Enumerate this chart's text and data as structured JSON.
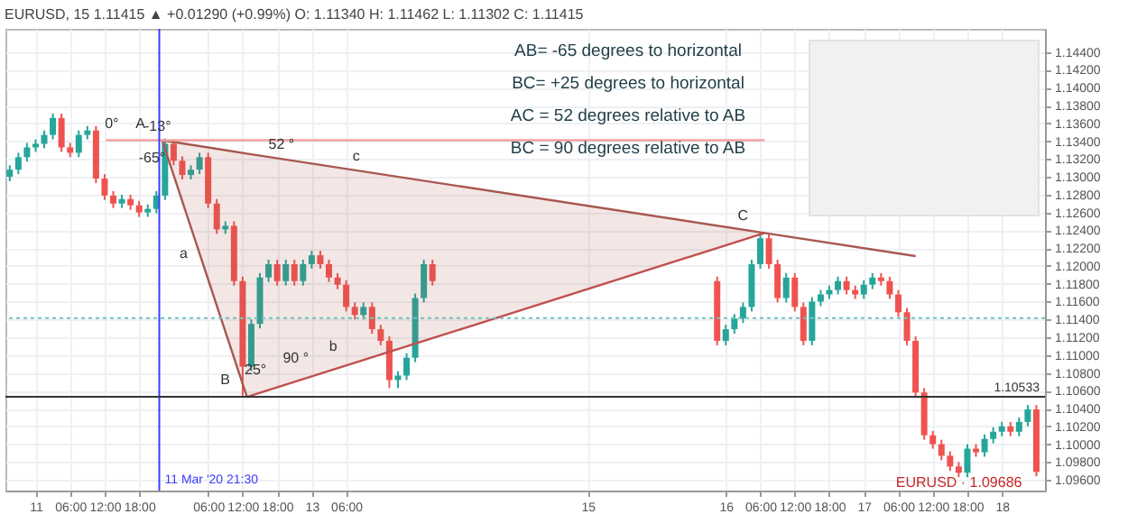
{
  "chart_data": {
    "type": "candlestick",
    "title": "EURUSD, 15  1.11415 ▲ +0.01290 (+0.99%)  O: 1.11340  H: 1.11462  L: 1.11302  C: 1.11415",
    "x": [
      "2020-03-10T19:30",
      "2020-03-10T21:00",
      "2020-03-10T22:30",
      "2020-03-11T00:00",
      "2020-03-11T01:30",
      "2020-03-11T03:00",
      "2020-03-11T04:30",
      "2020-03-11T06:00",
      "2020-03-11T07:30",
      "2020-03-11T09:00",
      "2020-03-11T10:30",
      "2020-03-11T12:00",
      "2020-03-11T13:30",
      "2020-03-11T15:00",
      "2020-03-11T16:30",
      "2020-03-11T18:00",
      "2020-03-11T19:30",
      "2020-03-11T21:00",
      "2020-03-11T22:30",
      "2020-03-12T00:00",
      "2020-03-12T01:30",
      "2020-03-12T03:00",
      "2020-03-12T04:30",
      "2020-03-12T06:00",
      "2020-03-12T07:30",
      "2020-03-12T09:00",
      "2020-03-12T10:30",
      "2020-03-12T12:00",
      "2020-03-12T13:30",
      "2020-03-12T15:00",
      "2020-03-12T16:30",
      "2020-03-12T18:00",
      "2020-03-12T19:30",
      "2020-03-12T21:00",
      "2020-03-12T22:30",
      "2020-03-13T00:00",
      "2020-03-13T01:30",
      "2020-03-13T03:00",
      "2020-03-13T04:30",
      "2020-03-13T06:00",
      "2020-03-13T07:30",
      "2020-03-13T09:00",
      "2020-03-13T10:30",
      "2020-03-13T12:00",
      "2020-03-13T13:30",
      "2020-03-13T15:00",
      "2020-03-13T16:30",
      "2020-03-13T18:00",
      "2020-03-13T19:30",
      "2020-03-13T21:00",
      "2020-03-15T22:30",
      "2020-03-16T00:00",
      "2020-03-16T01:30",
      "2020-03-16T03:00",
      "2020-03-16T04:30",
      "2020-03-16T06:00",
      "2020-03-16T07:30",
      "2020-03-16T09:00",
      "2020-03-16T10:30",
      "2020-03-16T12:00",
      "2020-03-16T13:30",
      "2020-03-16T15:00",
      "2020-03-16T16:30",
      "2020-03-16T18:00",
      "2020-03-16T19:30",
      "2020-03-16T21:00",
      "2020-03-16T22:30",
      "2020-03-17T00:00",
      "2020-03-17T01:30",
      "2020-03-17T03:00",
      "2020-03-17T04:30",
      "2020-03-17T06:00",
      "2020-03-17T07:30",
      "2020-03-17T09:00",
      "2020-03-17T10:30",
      "2020-03-17T12:00",
      "2020-03-17T13:30",
      "2020-03-17T15:00",
      "2020-03-17T16:30",
      "2020-03-17T18:00",
      "2020-03-17T19:30",
      "2020-03-17T21:00",
      "2020-03-17T22:30",
      "2020-03-18T00:00",
      "2020-03-18T01:30",
      "2020-03-18T03:00",
      "2020-03-18T04:30",
      "2020-03-18T06:00"
    ],
    "ohlc": [
      [
        1.13,
        1.1313,
        1.1295,
        1.1308
      ],
      [
        1.1308,
        1.1327,
        1.1303,
        1.1322
      ],
      [
        1.1322,
        1.1338,
        1.1317,
        1.1333
      ],
      [
        1.1333,
        1.1342,
        1.1328,
        1.1337
      ],
      [
        1.1337,
        1.1352,
        1.1332,
        1.1347
      ],
      [
        1.1347,
        1.1371,
        1.1342,
        1.1366
      ],
      [
        1.1366,
        1.1371,
        1.1328,
        1.1333
      ],
      [
        1.1333,
        1.1338,
        1.1322,
        1.1327
      ],
      [
        1.1327,
        1.1352,
        1.1322,
        1.1347
      ],
      [
        1.1347,
        1.1357,
        1.1342,
        1.1352
      ],
      [
        1.1352,
        1.1357,
        1.1293,
        1.1298
      ],
      [
        1.1298,
        1.1303,
        1.1274,
        1.1279
      ],
      [
        1.1279,
        1.1284,
        1.1265,
        1.127
      ],
      [
        1.127,
        1.128,
        1.1265,
        1.1275
      ],
      [
        1.1275,
        1.128,
        1.1263,
        1.1268
      ],
      [
        1.1268,
        1.1273,
        1.1255,
        1.126
      ],
      [
        1.126,
        1.1269,
        1.1255,
        1.1264
      ],
      [
        1.1264,
        1.1284,
        1.1259,
        1.1279
      ],
      [
        1.1279,
        1.1343,
        1.1274,
        1.1337
      ],
      [
        1.1337,
        1.1342,
        1.1313,
        1.1318
      ],
      [
        1.1318,
        1.1323,
        1.1297,
        1.1302
      ],
      [
        1.1302,
        1.1313,
        1.1297,
        1.1308
      ],
      [
        1.1308,
        1.1327,
        1.1303,
        1.1322
      ],
      [
        1.1322,
        1.1327,
        1.1265,
        1.127
      ],
      [
        1.127,
        1.1275,
        1.1236,
        1.1241
      ],
      [
        1.1241,
        1.125,
        1.1236,
        1.1245
      ],
      [
        1.1245,
        1.125,
        1.1178,
        1.1183
      ],
      [
        1.1183,
        1.1188,
        1.1053,
        1.1087
      ],
      [
        1.1087,
        1.114,
        1.1082,
        1.1135
      ],
      [
        1.1135,
        1.1192,
        1.113,
        1.1187
      ],
      [
        1.1187,
        1.1207,
        1.1182,
        1.1202
      ],
      [
        1.1202,
        1.1207,
        1.1178,
        1.1183
      ],
      [
        1.1183,
        1.1207,
        1.1178,
        1.1202
      ],
      [
        1.1202,
        1.1207,
        1.1178,
        1.1183
      ],
      [
        1.1183,
        1.1207,
        1.1178,
        1.1202
      ],
      [
        1.1202,
        1.1217,
        1.1197,
        1.1212
      ],
      [
        1.1212,
        1.1217,
        1.1197,
        1.1202
      ],
      [
        1.1202,
        1.1207,
        1.1182,
        1.1187
      ],
      [
        1.1187,
        1.1192,
        1.1174,
        1.1179
      ],
      [
        1.1179,
        1.1184,
        1.1149,
        1.1154
      ],
      [
        1.1154,
        1.1159,
        1.114,
        1.1145
      ],
      [
        1.1145,
        1.1159,
        1.114,
        1.1154
      ],
      [
        1.1154,
        1.1159,
        1.1124,
        1.1129
      ],
      [
        1.1129,
        1.1134,
        1.1111,
        1.1116
      ],
      [
        1.1116,
        1.1121,
        1.1063,
        1.1072
      ],
      [
        1.1072,
        1.1082,
        1.1063,
        1.1077
      ],
      [
        1.1077,
        1.1102,
        1.1072,
        1.1097
      ],
      [
        1.1097,
        1.1169,
        1.1092,
        1.1164
      ],
      [
        1.1164,
        1.1207,
        1.1159,
        1.1202
      ],
      [
        1.1202,
        1.1207,
        1.1178,
        1.1183
      ],
      [
        1.1183,
        1.1188,
        1.1111,
        1.1116
      ],
      [
        1.1116,
        1.1134,
        1.1111,
        1.1129
      ],
      [
        1.1129,
        1.1146,
        1.1124,
        1.1141
      ],
      [
        1.1141,
        1.1159,
        1.1136,
        1.1154
      ],
      [
        1.1154,
        1.1207,
        1.1149,
        1.1202
      ],
      [
        1.1202,
        1.1237,
        1.1197,
        1.1231
      ],
      [
        1.1231,
        1.1236,
        1.1197,
        1.1202
      ],
      [
        1.1202,
        1.1207,
        1.1159,
        1.1164
      ],
      [
        1.1164,
        1.1192,
        1.1159,
        1.1187
      ],
      [
        1.1187,
        1.1192,
        1.1149,
        1.1154
      ],
      [
        1.1154,
        1.1159,
        1.1111,
        1.1116
      ],
      [
        1.1116,
        1.1165,
        1.1111,
        1.116
      ],
      [
        1.116,
        1.1173,
        1.1155,
        1.1168
      ],
      [
        1.1168,
        1.1178,
        1.1163,
        1.1173
      ],
      [
        1.1173,
        1.1188,
        1.1168,
        1.1183
      ],
      [
        1.1183,
        1.1188,
        1.1168,
        1.1173
      ],
      [
        1.1173,
        1.1178,
        1.1163,
        1.1168
      ],
      [
        1.1168,
        1.1184,
        1.1163,
        1.1179
      ],
      [
        1.1179,
        1.1192,
        1.1174,
        1.1187
      ],
      [
        1.1187,
        1.1192,
        1.1178,
        1.1183
      ],
      [
        1.1183,
        1.1188,
        1.1163,
        1.1168
      ],
      [
        1.1168,
        1.1173,
        1.1143,
        1.1148
      ],
      [
        1.1148,
        1.1153,
        1.1111,
        1.1116
      ],
      [
        1.1116,
        1.1121,
        1.1053,
        1.1058
      ],
      [
        1.1058,
        1.1063,
        1.1005,
        1.101
      ],
      [
        1.101,
        1.1015,
        1.0995,
        1.1
      ],
      [
        1.1,
        1.1005,
        1.0982,
        1.0987
      ],
      [
        1.0987,
        1.0992,
        1.097,
        1.0975
      ],
      [
        1.0975,
        1.098,
        1.0963,
        1.0968
      ],
      [
        1.0968,
        1.1,
        1.0963,
        1.0995
      ],
      [
        1.0995,
        1.1,
        1.0986,
        1.0991
      ],
      [
        1.0991,
        1.1011,
        1.0986,
        1.1006
      ],
      [
        1.1006,
        1.1019,
        1.1001,
        1.1014
      ],
      [
        1.1014,
        1.1025,
        1.1009,
        1.102
      ],
      [
        1.102,
        1.1025,
        1.1009,
        1.1014
      ],
      [
        1.1014,
        1.103,
        1.1009,
        1.1025
      ],
      [
        1.1025,
        1.1044,
        1.102,
        1.1039
      ],
      [
        1.1039,
        1.1044,
        1.0964,
        1.0969
      ]
    ],
    "colors": [
      "#26a69a",
      "#26a69a",
      "#26a69a",
      "#26a69a",
      "#26a69a",
      "#26a69a",
      "#ef5350",
      "#ef5350",
      "#26a69a",
      "#26a69a",
      "#ef5350",
      "#ef5350",
      "#ef5350",
      "#26a69a",
      "#ef5350",
      "#ef5350",
      "#26a69a",
      "#26a69a",
      "#26a69a",
      "#ef5350",
      "#ef5350",
      "#26a69a",
      "#26a69a",
      "#ef5350",
      "#ef5350",
      "#26a69a",
      "#ef5350",
      "#ef5350",
      "#26a69a",
      "#26a69a",
      "#26a69a",
      "#ef5350",
      "#26a69a",
      "#ef5350",
      "#26a69a",
      "#26a69a",
      "#ef5350",
      "#ef5350",
      "#ef5350",
      "#ef5350",
      "#ef5350",
      "#26a69a",
      "#ef5350",
      "#ef5350",
      "#ef5350",
      "#26a69a",
      "#26a69a",
      "#26a69a",
      "#26a69a",
      "#ef5350",
      "#ef5350",
      "#26a69a",
      "#26a69a",
      "#26a69a",
      "#26a69a",
      "#26a69a",
      "#ef5350",
      "#ef5350",
      "#26a69a",
      "#ef5350",
      "#ef5350",
      "#26a69a",
      "#26a69a",
      "#26a69a",
      "#26a69a",
      "#ef5350",
      "#ef5350",
      "#26a69a",
      "#26a69a",
      "#ef5350",
      "#ef5350",
      "#ef5350",
      "#ef5350",
      "#ef5350",
      "#ef5350",
      "#ef5350",
      "#ef5350",
      "#ef5350",
      "#ef5350",
      "#26a69a",
      "#ef5350",
      "#26a69a",
      "#26a69a",
      "#26a69a",
      "#ef5350",
      "#26a69a",
      "#26a69a",
      "#ef5350"
    ],
    "series": [
      {
        "type": "line",
        "color": "#a85750",
        "x": [
          "2020-03-11T22:00",
          "2020-03-12T12:45",
          "2020-03-16T06:45",
          "2020-03-17T09:00"
        ],
        "values": [
          1.1341,
          1.1326,
          1.1237,
          1.1211
        ],
        "lower": [
          1.1341,
          1.1053,
          1.1237,
          null
        ],
        "upper": [
          1.1341,
          1.1326,
          1.1237,
          null
        ]
      },
      {
        "type": "line",
        "color": "#a85750",
        "x": [
          "2020-03-11T22:00",
          "2020-03-12T12:45"
        ],
        "values": [
          1.1341,
          1.1053
        ]
      },
      {
        "type": "line",
        "color": "#c0504d",
        "x": [
          "2020-03-12T12:45",
          "2020-03-16T06:45"
        ],
        "values": [
          1.1053,
          1.1237
        ]
      },
      {
        "type": "line",
        "color": "#f4a0a0",
        "x": [
          "2020-03-11T12:15",
          "2020-03-16T06:45"
        ],
        "values": [
          1.1341,
          1.1341
        ]
      }
    ],
    "xlim": [
      "2020-03-10T18:45",
      "2020-03-18T07:30"
    ],
    "ylim": [
      1.0948,
      1.1466
    ],
    "xticks": [
      {
        "value": "2020-03-11T00:00",
        "label": "11"
      },
      {
        "value": "2020-03-11T06:00",
        "label": "06:00"
      },
      {
        "value": "2020-03-11T12:00",
        "label": "12:00"
      },
      {
        "value": "2020-03-11T18:00",
        "label": "18:00"
      },
      {
        "value": "2020-03-12T06:00",
        "label": "06:00"
      },
      {
        "value": "2020-03-12T12:00",
        "label": "12:00"
      },
      {
        "value": "2020-03-12T18:00",
        "label": "18:00"
      },
      {
        "value": "2020-03-13T00:00",
        "label": "13"
      },
      {
        "value": "2020-03-13T06:00",
        "label": "06:00"
      },
      {
        "value": "2020-03-15T00:00",
        "label": "15"
      },
      {
        "value": "2020-03-16T00:00",
        "label": "16"
      },
      {
        "value": "2020-03-16T06:00",
        "label": "06:00"
      },
      {
        "value": "2020-03-16T12:00",
        "label": "12:00"
      },
      {
        "value": "2020-03-16T18:00",
        "label": "18:00"
      },
      {
        "value": "2020-03-17T00:00",
        "label": "17"
      },
      {
        "value": "2020-03-17T06:00",
        "label": "06:00"
      },
      {
        "value": "2020-03-17T12:00",
        "label": "12:00"
      },
      {
        "value": "2020-03-17T18:00",
        "label": "18:00"
      },
      {
        "value": "2020-03-18T00:00",
        "label": "18"
      }
    ],
    "yticks": [
      {
        "value": 1.096,
        "label": "1.09600"
      },
      {
        "value": 1.098,
        "label": "1.09800"
      },
      {
        "value": 1.1,
        "label": "1.10000"
      },
      {
        "value": 1.102,
        "label": "1.10200"
      },
      {
        "value": 1.104,
        "label": "1.10400"
      },
      {
        "value": 1.106,
        "label": "1.10600"
      },
      {
        "value": 1.108,
        "label": "1.10800"
      },
      {
        "value": 1.11,
        "label": "1.11000"
      },
      {
        "value": 1.112,
        "label": "1.11200"
      },
      {
        "value": 1.114,
        "label": "1.11400"
      },
      {
        "value": 1.116,
        "label": "1.11600"
      },
      {
        "value": 1.118,
        "label": "1.11800"
      },
      {
        "value": 1.12,
        "label": "1.12000"
      },
      {
        "value": 1.122,
        "label": "1.12200"
      },
      {
        "value": 1.124,
        "label": "1.12400"
      },
      {
        "value": 1.126,
        "label": "1.12600"
      },
      {
        "value": 1.128,
        "label": "1.12800"
      },
      {
        "value": 1.13,
        "label": "1.13000"
      },
      {
        "value": 1.132,
        "label": "1.13200"
      },
      {
        "value": 1.134,
        "label": "1.13400"
      },
      {
        "value": 1.136,
        "label": "1.13600"
      },
      {
        "value": 1.138,
        "label": "1.13800"
      },
      {
        "value": 1.14,
        "label": "1.14000"
      },
      {
        "value": 1.142,
        "label": "1.14200"
      },
      {
        "value": 1.144,
        "label": "1.14400"
      }
    ],
    "grid": true,
    "ref_lines": [
      {
        "axis": "x",
        "value": "2020-03-11T21:30",
        "label": "11 Mar '20  21:30",
        "color": "#3b3bff",
        "line_style": "solid"
      },
      {
        "axis": "y",
        "value": 1.10533,
        "label": "1.10533",
        "color": "#333333",
        "line_style": "solid"
      },
      {
        "axis": "y",
        "value": 1.11415,
        "color": "#6fc2b8",
        "line_style": "dotted"
      }
    ],
    "annotations": [
      "AB= -65 degrees to horizontal",
      "BC= +25 degrees to horizontal",
      "AC = 52 degrees relative to AB",
      "BC = 90 degrees relative to AB",
      {
        "text": "A",
        "x": "2020-03-11T22:00",
        "y": 1.1341
      },
      {
        "text": "B",
        "x": "2020-03-12T12:45",
        "y": 1.1053
      },
      {
        "text": "C",
        "x": "2020-03-16T06:45",
        "y": 1.1237
      },
      {
        "text": "a",
        "x": "2020-03-12T05:30",
        "y": 1.1195
      },
      {
        "text": "b",
        "x": "2020-03-13T07:30",
        "y": 1.1091
      },
      {
        "text": "c",
        "x": "2020-03-13T11:30",
        "y": 1.1304
      },
      {
        "text": "52 °",
        "x": "2020-03-12T22:30",
        "y": 1.1317
      },
      {
        "text": "90 °",
        "x": "2020-03-13T01:00",
        "y": 1.1078
      },
      {
        "text": "-13°",
        "x": "2020-03-12T01:00",
        "y": 1.1338
      },
      {
        "text": "-65°",
        "x": "2020-03-12T00:00",
        "y": 1.1302
      },
      {
        "text": "0°",
        "x": "2020-03-11T17:00",
        "y": 1.1341
      },
      {
        "text": "25°",
        "x": "2020-03-12T18:00",
        "y": 1.1064
      },
      {
        "text": "EURUSD · 1.09686",
        "x": "2020-03-18T06:00",
        "y": 1.09686
      }
    ]
  }
}
